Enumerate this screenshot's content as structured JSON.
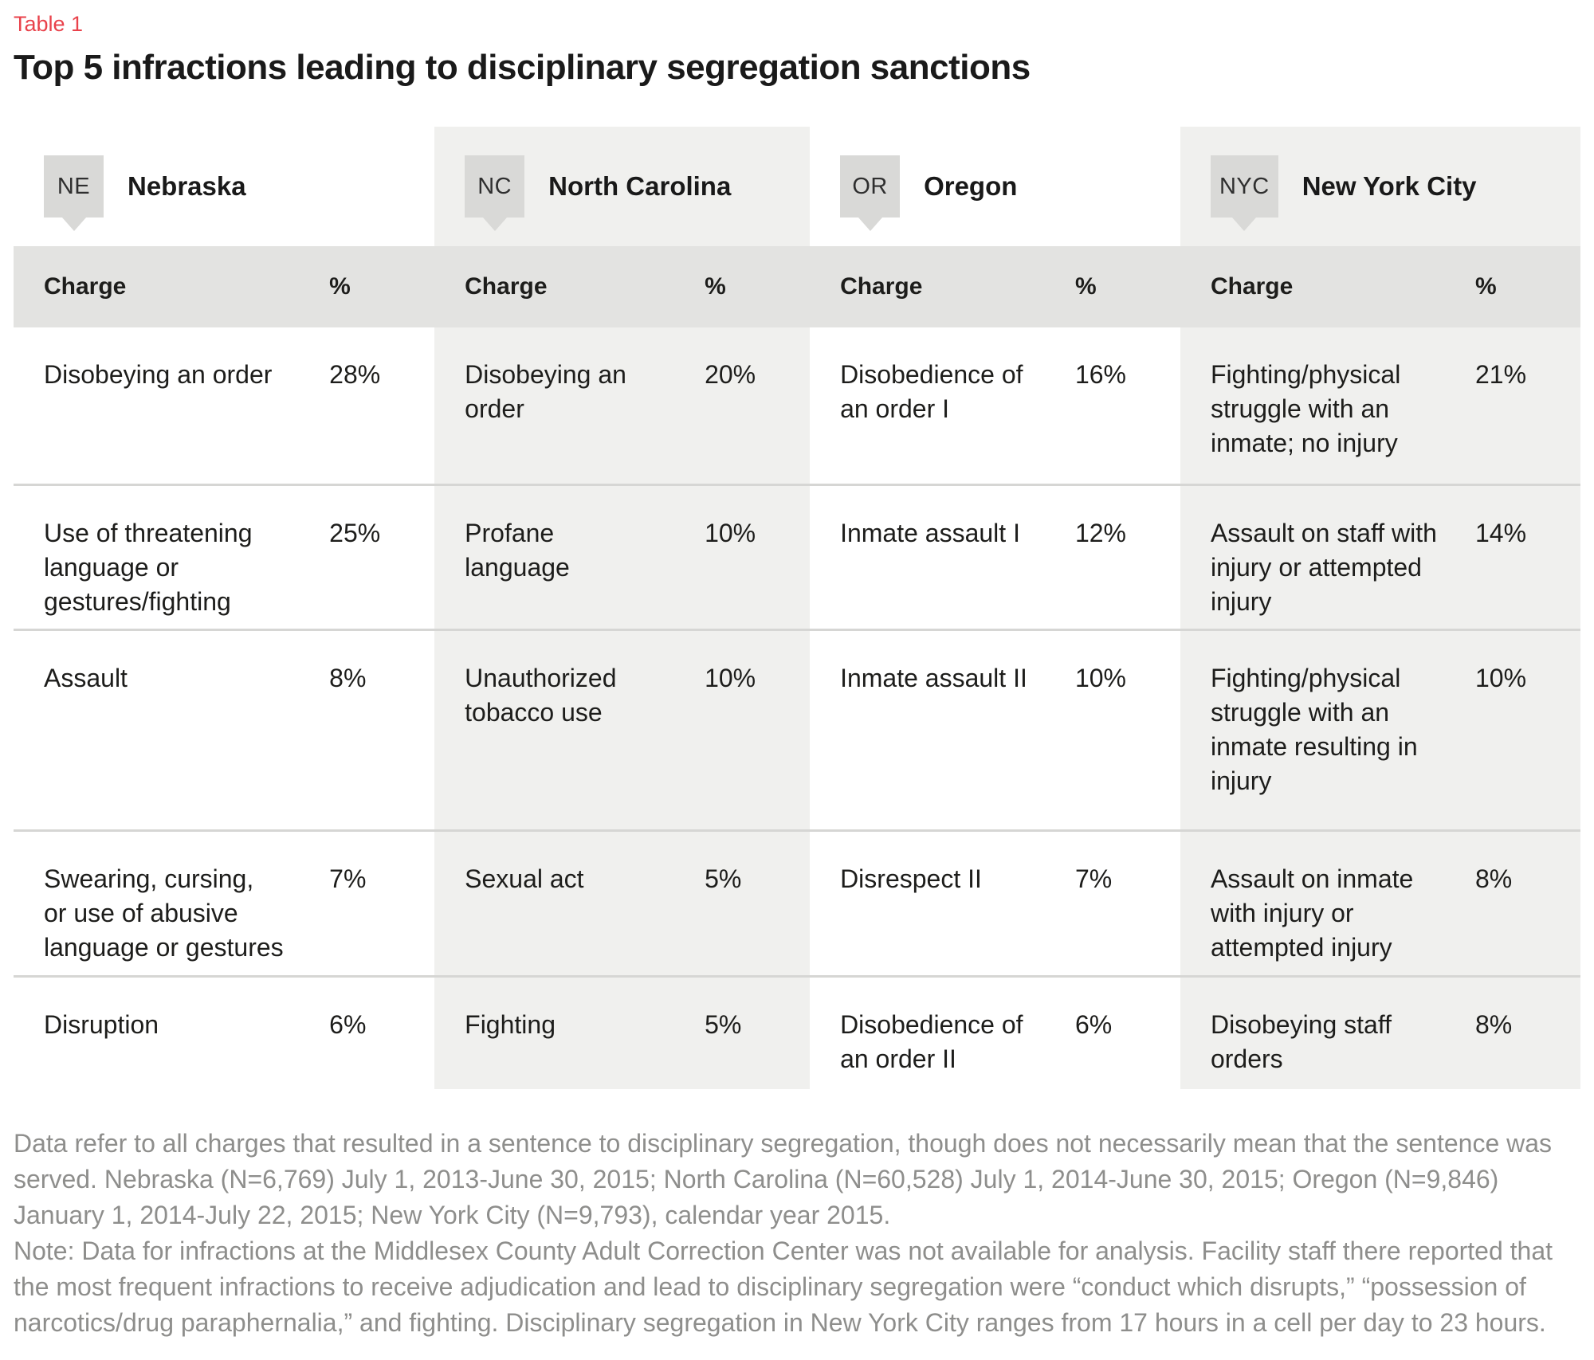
{
  "table_label": "Table 1",
  "title": "Top 5 infractions leading to disciplinary segregation sanctions",
  "colors": {
    "accent_red": "#e9424b",
    "header_band": "#e3e3e1",
    "column_stripe": "#f0f0ee",
    "badge_bg": "#d9d9d7",
    "separator": "#d6d6d4",
    "body_text": "#1d1d1b",
    "footnote_text": "#8e8e8c"
  },
  "col_header": {
    "charge": "Charge",
    "pct": "%"
  },
  "columns": [
    {
      "abbr": "NE",
      "name": "Nebraska",
      "rows": [
        {
          "charge": "Disobeying an order",
          "pct": "28%"
        },
        {
          "charge": "Use of threatening\nlanguage or\ngestures/fighting",
          "pct": "25%"
        },
        {
          "charge": "Assault",
          "pct": "8%"
        },
        {
          "charge": "Swearing, cursing,\nor use of abusive\nlanguage or gestures",
          "pct": "7%"
        },
        {
          "charge": "Disruption",
          "pct": "6%"
        }
      ]
    },
    {
      "abbr": "NC",
      "name": "North Carolina",
      "rows": [
        {
          "charge": "Disobeying an\norder",
          "pct": "20%"
        },
        {
          "charge": "Profane\nlanguage",
          "pct": "10%"
        },
        {
          "charge": "Unauthorized\ntobacco use",
          "pct": "10%"
        },
        {
          "charge": "Sexual act",
          "pct": "5%"
        },
        {
          "charge": "Fighting",
          "pct": "5%"
        }
      ]
    },
    {
      "abbr": "OR",
      "name": "Oregon",
      "rows": [
        {
          "charge": "Disobedience of\nan order I",
          "pct": "16%"
        },
        {
          "charge": "Inmate assault I",
          "pct": "12%"
        },
        {
          "charge": "Inmate assault II",
          "pct": "10%"
        },
        {
          "charge": "Disrespect II",
          "pct": "7%"
        },
        {
          "charge": "Disobedience of\nan order II",
          "pct": "6%"
        }
      ]
    },
    {
      "abbr": "NYC",
      "name": "New York City",
      "rows": [
        {
          "charge": "Fighting/physical\nstruggle with an\ninmate; no injury",
          "pct": "21%"
        },
        {
          "charge": "Assault on staff with\ninjury or attempted\ninjury",
          "pct": "14%"
        },
        {
          "charge": "Fighting/physical\nstruggle with an\ninmate resulting in\ninjury",
          "pct": "10%"
        },
        {
          "charge": "Assault on inmate\nwith injury or\nattempted injury",
          "pct": "8%"
        },
        {
          "charge": "Disobeying staff\norders",
          "pct": "8%"
        }
      ]
    }
  ],
  "footnote": "Data refer to all charges that resulted in a sentence to disciplinary segregation, though does not necessarily mean that the sentence was served. Nebraska (N=6,769) July 1, 2013-June 30, 2015; North Carolina (N=60,528) July 1, 2014-June 30, 2015; Oregon (N=9,846) January 1, 2014-July 22, 2015; New York City (N=9,793), calendar year 2015.\nNote: Data for infractions at the Middlesex County Adult Correction Center was not available for analysis. Facility staff there reported that the most frequent infractions to receive adjudication and lead to disciplinary segregation were “conduct which disrupts,” “possession of narcotics/drug paraphernalia,” and fighting. Disciplinary segregation in New York City ranges from 17 hours in a cell per day to 23 hours."
}
